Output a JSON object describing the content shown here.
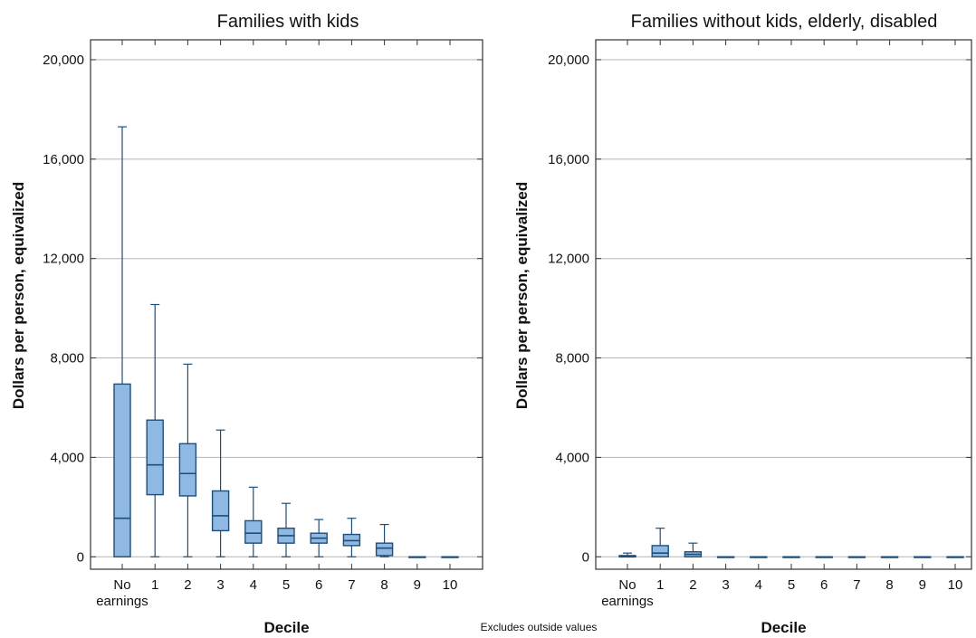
{
  "note": "Excludes outside values",
  "colors": {
    "box_fill": "#8fb8e3",
    "box_stroke": "#1f4e79",
    "gridline": "#b5b5b5",
    "frame": "#333333"
  },
  "chart_data": [
    {
      "type": "boxplot",
      "title": "Families with kids",
      "xlabel": "Decile",
      "ylabel": "Dollars per person, equivalized",
      "ylim": [
        -500,
        20800
      ],
      "yticks": [
        0,
        4000,
        8000,
        12000,
        16000,
        20000
      ],
      "ytick_labels": [
        "0",
        "4,000",
        "8,000",
        "12,000",
        "16,000",
        "20,000"
      ],
      "grid": true,
      "categories": [
        [
          "No",
          "earnings"
        ],
        [
          "1"
        ],
        [
          "2"
        ],
        [
          "3"
        ],
        [
          "4"
        ],
        [
          "5"
        ],
        [
          "6"
        ],
        [
          "7"
        ],
        [
          "8"
        ],
        [
          "9"
        ],
        [
          "10"
        ]
      ],
      "boxes": [
        {
          "min": 0,
          "q1": 0,
          "median": 1550,
          "q3": 6950,
          "max": 17300
        },
        {
          "min": 0,
          "q1": 2500,
          "median": 3700,
          "q3": 5500,
          "max": 10150
        },
        {
          "min": 0,
          "q1": 2450,
          "median": 3350,
          "q3": 4550,
          "max": 7750
        },
        {
          "min": 0,
          "q1": 1050,
          "median": 1650,
          "q3": 2650,
          "max": 5100
        },
        {
          "min": 0,
          "q1": 550,
          "median": 950,
          "q3": 1450,
          "max": 2800
        },
        {
          "min": 0,
          "q1": 550,
          "median": 850,
          "q3": 1150,
          "max": 2150
        },
        {
          "min": 0,
          "q1": 550,
          "median": 750,
          "q3": 950,
          "max": 1500
        },
        {
          "min": 0,
          "q1": 450,
          "median": 650,
          "q3": 900,
          "max": 1550
        },
        {
          "min": 0,
          "q1": 50,
          "median": 350,
          "q3": 550,
          "max": 1300
        },
        {
          "min": 0,
          "q1": 0,
          "median": 0,
          "q3": 0,
          "max": 0
        },
        {
          "min": 0,
          "q1": 0,
          "median": 0,
          "q3": 0,
          "max": 0
        }
      ]
    },
    {
      "type": "boxplot",
      "title": "Families without kids, elderly, disabled",
      "xlabel": "Decile",
      "ylabel": "Dollars per person, equivalized",
      "ylim": [
        -500,
        20800
      ],
      "yticks": [
        0,
        4000,
        8000,
        12000,
        16000,
        20000
      ],
      "ytick_labels": [
        "0",
        "4,000",
        "8,000",
        "12,000",
        "16,000",
        "20,000"
      ],
      "grid": true,
      "categories": [
        [
          "No",
          "earnings"
        ],
        [
          "1"
        ],
        [
          "2"
        ],
        [
          "3"
        ],
        [
          "4"
        ],
        [
          "5"
        ],
        [
          "6"
        ],
        [
          "7"
        ],
        [
          "8"
        ],
        [
          "9"
        ],
        [
          "10"
        ]
      ],
      "boxes": [
        {
          "min": 0,
          "q1": 0,
          "median": 0,
          "q3": 50,
          "max": 150
        },
        {
          "min": 0,
          "q1": 0,
          "median": 150,
          "q3": 450,
          "max": 1150
        },
        {
          "min": 0,
          "q1": 0,
          "median": 100,
          "q3": 200,
          "max": 550
        },
        {
          "min": 0,
          "q1": 0,
          "median": 0,
          "q3": 0,
          "max": 0
        },
        {
          "min": 0,
          "q1": 0,
          "median": 0,
          "q3": 0,
          "max": 0
        },
        {
          "min": 0,
          "q1": 0,
          "median": 0,
          "q3": 0,
          "max": 0
        },
        {
          "min": 0,
          "q1": 0,
          "median": 0,
          "q3": 0,
          "max": 0
        },
        {
          "min": 0,
          "q1": 0,
          "median": 0,
          "q3": 0,
          "max": 0
        },
        {
          "min": 0,
          "q1": 0,
          "median": 0,
          "q3": 0,
          "max": 0
        },
        {
          "min": 0,
          "q1": 0,
          "median": 0,
          "q3": 0,
          "max": 0
        },
        {
          "min": 0,
          "q1": 0,
          "median": 0,
          "q3": 0,
          "max": 0
        }
      ]
    }
  ]
}
